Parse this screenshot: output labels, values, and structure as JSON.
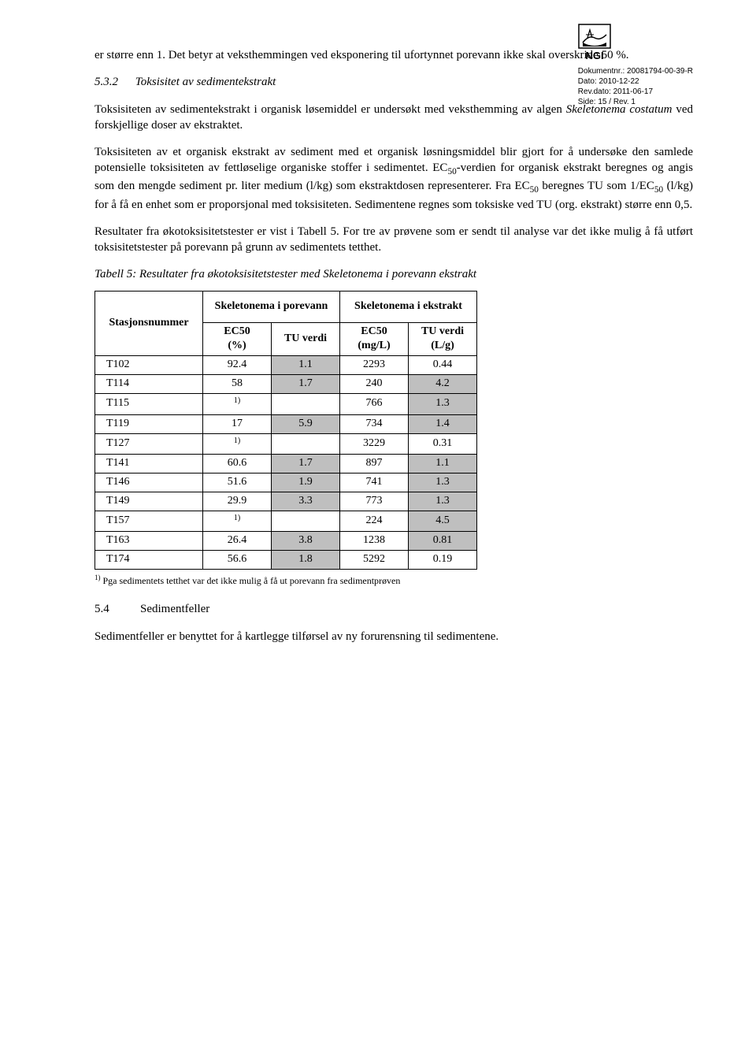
{
  "header": {
    "logo_label": "NGI",
    "meta": {
      "docnr_label": "Dokumentnr.:",
      "docnr": "20081794-00-39-R",
      "dato_label": "Dato:",
      "dato": "2010-12-22",
      "revdato_label": "Rev.dato:",
      "revdato": "2011-06-17",
      "side_label": "Side:",
      "side": "15 / Rev. 1"
    }
  },
  "body": {
    "p1": "er større enn 1. Det betyr at veksthemmingen ved eksponering til ufortynnet porevann ikke skal overskride 50 %.",
    "h532_num": "5.3.2",
    "h532_title": "Toksisitet av sedimentekstrakt",
    "p2_a": "Toksisiteten av sedimentekstrakt i organisk løsemiddel er undersøkt med veksthemming av algen ",
    "p2_i": "Skeletonema costatum",
    "p2_b": " ved forskjellige doser av ekstraktet.",
    "p3_a": "Toksisiteten av et organisk ekstrakt av sediment med et organisk løsningsmiddel blir gjort for å undersøke den samlede potensielle toksisiteten av fettløselige organiske stoffer i sedimentet. EC",
    "p3_b": "-verdien for organisk ekstrakt beregnes og angis som den mengde sediment pr. liter medium (l/kg) som ekstraktdosen representerer. Fra EC",
    "p3_c": " beregnes TU som 1/EC",
    "p3_d": " (l/kg) for å få en enhet som er proporsjonal med toksisiteten. Sedimentene regnes som toksiske ved TU (org. ekstrakt) større enn 0,5.",
    "sub50": "50",
    "p4": "Resultater fra økotoksisitetstester er vist i Tabell 5. For tre av prøvene som er sendt til analyse var det ikke mulig å få utført toksisitetstester på porevann på grunn av sedimentets tetthet.",
    "table_caption": "Tabell 5: Resultater fra økotoksisitetstester med Skeletonema i porevann ekstrakt",
    "footnote_sup": "1)",
    "footnote": " Pga sedimentets tetthet var det ikke mulig å få ut porevann fra sedimentprøven",
    "h54_num": "5.4",
    "h54_title": "Sedimentfeller",
    "p5": "Sedimentfeller er benyttet for å kartlegge tilførsel av ny forurensning til sedimentene."
  },
  "table": {
    "col_station": "Stasjonsnummer",
    "group_porevann": "Skeletonema i porevann",
    "group_ekstrakt": "Skeletonema i ekstrakt",
    "col_ec50_pct": "EC50 (%)",
    "col_tu": "TU verdi",
    "col_ec50_mgl": "EC50 (mg/L)",
    "col_tu_lg": "TU verdi (L/g)",
    "rows": [
      {
        "s": "T102",
        "a": "92.4",
        "b": "1.1",
        "bsh": true,
        "c": "2293",
        "d": "0.44",
        "dsh": false
      },
      {
        "s": "T114",
        "a": "58",
        "b": "1.7",
        "bsh": true,
        "c": "240",
        "d": "4.2",
        "dsh": true
      },
      {
        "s": "T115",
        "a": "1)",
        "asup": true,
        "b": "",
        "c": "766",
        "d": "1.3",
        "dsh": true
      },
      {
        "s": "T119",
        "a": "17",
        "b": "5.9",
        "bsh": true,
        "c": "734",
        "d": "1.4",
        "dsh": true
      },
      {
        "s": "T127",
        "a": "1)",
        "asup": true,
        "b": "",
        "c": "3229",
        "d": "0.31",
        "dsh": false
      },
      {
        "s": "T141",
        "a": "60.6",
        "b": "1.7",
        "bsh": true,
        "c": "897",
        "d": "1.1",
        "dsh": true
      },
      {
        "s": "T146",
        "a": "51.6",
        "b": "1.9",
        "bsh": true,
        "c": "741",
        "d": "1.3",
        "dsh": true
      },
      {
        "s": "T149",
        "a": "29.9",
        "b": "3.3",
        "bsh": true,
        "c": "773",
        "d": "1.3",
        "dsh": true
      },
      {
        "s": "T157",
        "a": "1)",
        "asup": true,
        "b": "",
        "c": "224",
        "d": "4.5",
        "dsh": true
      },
      {
        "s": "T163",
        "a": "26.4",
        "b": "3.8",
        "bsh": true,
        "c": "1238",
        "d": "0.81",
        "dsh": true
      },
      {
        "s": "T174",
        "a": "56.6",
        "b": "1.8",
        "bsh": true,
        "c": "5292",
        "d": "0.19",
        "dsh": false
      }
    ]
  },
  "colors": {
    "shaded": "#bfbfbf"
  }
}
